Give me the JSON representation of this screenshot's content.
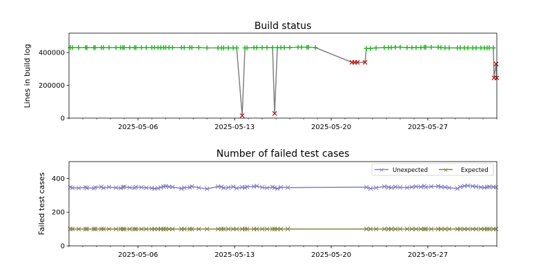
{
  "chart_data": [
    {
      "type": "line",
      "title": "Build status",
      "xlabel": "",
      "ylabel": "Lines in build log",
      "x_origin": "2025-05-01",
      "x_unit": "days since x_origin",
      "xlim": [
        0,
        31
      ],
      "ylim": [
        0,
        518000
      ],
      "xticks": [
        {
          "day": 5,
          "label": "2025-05-06"
        },
        {
          "day": 12,
          "label": "2025-05-13"
        },
        {
          "day": 19,
          "label": "2025-05-20"
        },
        {
          "day": 26,
          "label": "2025-05-27"
        }
      ],
      "yticks": [
        {
          "value": 0,
          "label": "0"
        },
        {
          "value": 200000,
          "label": "200000"
        },
        {
          "value": 400000,
          "label": "400000"
        }
      ],
      "line_color": "#808080",
      "pass_color": "#22bb22",
      "fail_color": "#cc1111",
      "pass_x": [
        0.1,
        0.25,
        0.7,
        1.2,
        1.3,
        1.8,
        1.9,
        2.35,
        2.5,
        2.9,
        3.4,
        3.75,
        3.9,
        4.0,
        4.4,
        4.75,
        4.85,
        5.25,
        5.6,
        6.0,
        6.2,
        6.45,
        6.65,
        6.85,
        7.0,
        7.25,
        7.5,
        8.15,
        8.35,
        8.75,
        8.9,
        9.4,
        10.0,
        10.8,
        11.05,
        11.2,
        11.55,
        11.9,
        12.15,
        12.75,
        12.9,
        13.4,
        13.6,
        14.0,
        14.35,
        14.75,
        15.1,
        15.35,
        15.6,
        16.0,
        16.6,
        16.85,
        17.25,
        17.35,
        17.85,
        21.55,
        21.85,
        22.25,
        22.85,
        23.15,
        23.35,
        23.65,
        24.0,
        24.5,
        24.85,
        25.15,
        25.5,
        25.75,
        25.85,
        26.25,
        26.75,
        26.95,
        27.25,
        27.55,
        28.15,
        28.35,
        28.65,
        28.9,
        29.25,
        29.5,
        29.85,
        30.1,
        30.3,
        30.45,
        30.75
      ],
      "pass_y": [
        430000,
        430000,
        430000,
        430000,
        430000,
        430000,
        430000,
        430000,
        430000,
        430000,
        430000,
        430000,
        430000,
        430000,
        430000,
        430000,
        430000,
        430000,
        430000,
        430000,
        430000,
        430000,
        430000,
        430000,
        430000,
        430000,
        430000,
        430000,
        430000,
        430000,
        430000,
        430000,
        428000,
        428000,
        428000,
        428000,
        428000,
        428000,
        428000,
        428000,
        428000,
        430000,
        430000,
        430000,
        430000,
        430000,
        430000,
        430000,
        430000,
        430000,
        432000,
        432000,
        432000,
        432000,
        430000,
        425000,
        425000,
        428000,
        430000,
        430000,
        430000,
        432000,
        432000,
        430000,
        430000,
        430000,
        430000,
        432000,
        432000,
        432000,
        432000,
        430000,
        428000,
        428000,
        428000,
        428000,
        428000,
        428000,
        428000,
        428000,
        428000,
        428000,
        428000,
        428000,
        428000
      ],
      "fail_x": [
        12.55,
        14.9,
        20.5,
        20.7,
        20.9,
        21.45,
        30.8,
        30.95,
        31.0
      ],
      "fail_y": [
        15000,
        28000,
        340000,
        340000,
        340000,
        340000,
        245000,
        330000,
        245000
      ]
    },
    {
      "type": "line",
      "title": "Number of failed test cases",
      "xlabel": "",
      "ylabel": "Failed test cases",
      "x_origin": "2025-05-01",
      "x_unit": "days since x_origin",
      "xlim": [
        0,
        31
      ],
      "ylim": [
        0,
        500
      ],
      "xticks": [
        {
          "day": 5,
          "label": "2025-05-06"
        },
        {
          "day": 12,
          "label": "2025-05-13"
        },
        {
          "day": 19,
          "label": "2025-05-20"
        },
        {
          "day": 26,
          "label": "2025-05-27"
        }
      ],
      "yticks": [
        {
          "value": 0,
          "label": "0"
        },
        {
          "value": 200,
          "label": "200"
        },
        {
          "value": 400,
          "label": "400"
        }
      ],
      "legend_position": "top-right",
      "x": [
        0.1,
        0.25,
        0.7,
        1.2,
        1.3,
        1.8,
        1.9,
        2.35,
        2.5,
        2.9,
        3.4,
        3.75,
        3.9,
        4.0,
        4.4,
        4.75,
        4.85,
        5.25,
        5.6,
        6.0,
        6.2,
        6.45,
        6.65,
        6.85,
        7.0,
        7.25,
        7.5,
        8.15,
        8.35,
        8.75,
        8.9,
        9.4,
        10.0,
        10.8,
        11.05,
        11.2,
        11.55,
        11.9,
        12.15,
        12.55,
        12.75,
        12.9,
        13.4,
        13.6,
        14.0,
        14.35,
        14.75,
        14.9,
        15.1,
        15.35,
        15.85,
        21.55,
        21.85,
        22.25,
        22.85,
        23.15,
        23.35,
        23.65,
        24.0,
        24.5,
        24.85,
        25.15,
        25.5,
        25.75,
        25.85,
        26.25,
        26.75,
        26.95,
        27.25,
        27.55,
        28.15,
        28.35,
        28.65,
        28.9,
        29.25,
        29.5,
        29.85,
        30.1,
        30.3,
        30.45,
        30.75,
        30.95
      ],
      "series": [
        {
          "name": "Unexpected",
          "color": "#8080c4",
          "values": [
            348,
            345,
            343,
            347,
            344,
            342,
            346,
            350,
            344,
            349,
            345,
            343,
            348,
            350,
            346,
            344,
            349,
            347,
            345,
            343,
            340,
            342,
            347,
            352,
            354,
            351,
            349,
            340,
            345,
            348,
            352,
            345,
            338,
            352,
            350,
            344,
            346,
            351,
            342,
            348,
            346,
            350,
            352,
            355,
            347,
            344,
            349,
            345,
            340,
            348,
            346,
            348,
            340,
            345,
            352,
            348,
            345,
            350,
            347,
            346,
            349,
            352,
            350,
            355,
            348,
            352,
            354,
            350,
            348,
            345,
            340,
            350,
            355,
            357,
            354,
            352,
            348,
            346,
            349,
            351,
            350,
            348
          ]
        },
        {
          "name": "Expected",
          "color": "#808040",
          "values": [
            100,
            100,
            100,
            100,
            100,
            100,
            100,
            100,
            100,
            100,
            100,
            100,
            100,
            100,
            100,
            100,
            100,
            100,
            100,
            100,
            100,
            100,
            100,
            100,
            100,
            100,
            100,
            100,
            100,
            100,
            100,
            100,
            100,
            100,
            100,
            100,
            100,
            100,
            100,
            100,
            100,
            100,
            100,
            100,
            100,
            100,
            100,
            100,
            100,
            100,
            100,
            100,
            100,
            100,
            100,
            100,
            100,
            100,
            100,
            100,
            100,
            100,
            100,
            100,
            100,
            100,
            100,
            100,
            100,
            100,
            100,
            100,
            100,
            100,
            100,
            100,
            100,
            100,
            100,
            100,
            100,
            100
          ]
        }
      ]
    }
  ]
}
